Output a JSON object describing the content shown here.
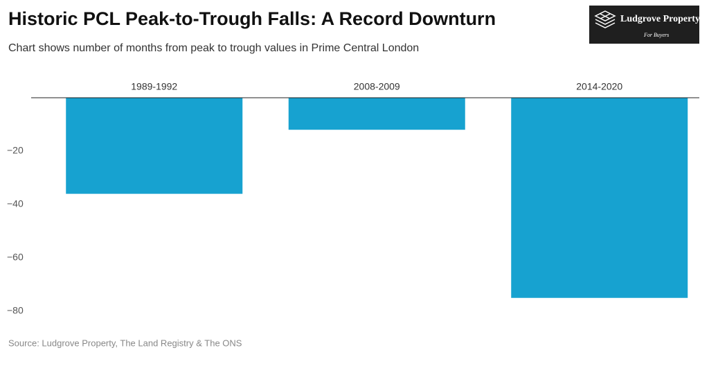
{
  "chart_data": {
    "type": "bar",
    "title": "Historic PCL Peak-to-Trough Falls: A Record Downturn",
    "subtitle": "Chart shows number of months from peak to trough values in Prime Central London",
    "source": "Source: Ludgrove Property, The Land Registry & The ONS",
    "logo": {
      "name": "Ludgrove Property",
      "tagline": "For Buyers"
    },
    "categories": [
      "1989-1992",
      "2008-2009",
      "2014-2020"
    ],
    "values": [
      -36,
      -12,
      -75
    ],
    "color": "#17a2d0",
    "ylim": [
      -82,
      0
    ],
    "yticks": [
      {
        "value": -20,
        "label": "−20"
      },
      {
        "value": -40,
        "label": "−40"
      },
      {
        "value": -60,
        "label": "−60"
      },
      {
        "value": -80,
        "label": "−80"
      }
    ],
    "grid": false
  }
}
